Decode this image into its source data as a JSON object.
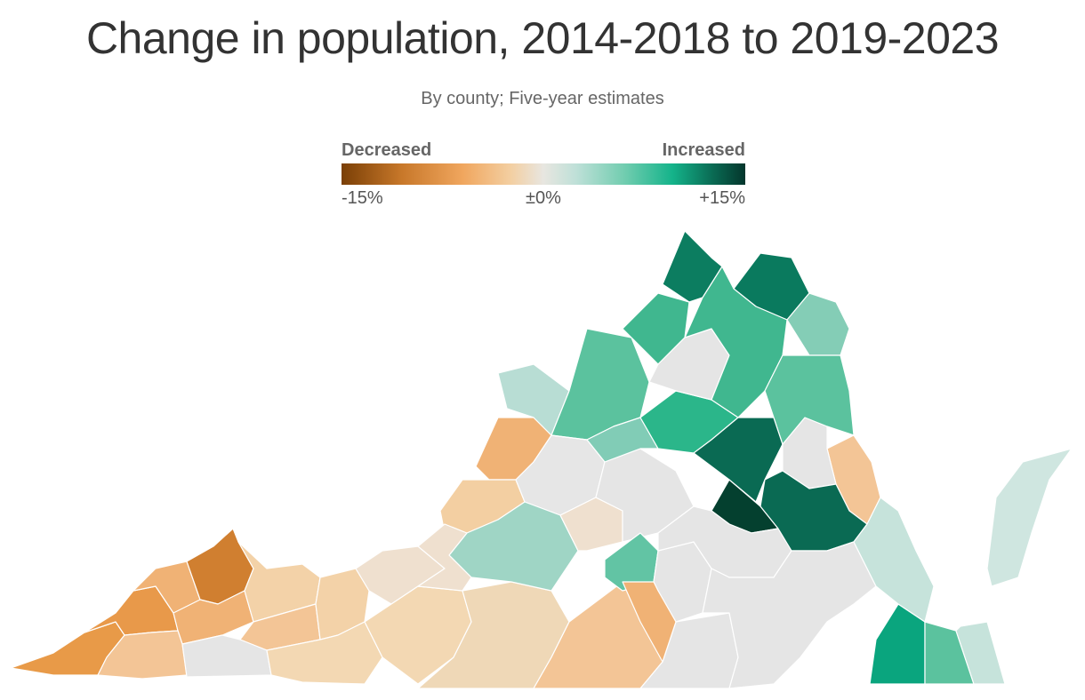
{
  "title": "Change in population, 2014-2018 to 2019-2023",
  "subtitle": "By county; Five-year estimates",
  "legend": {
    "low_label": "Decreased",
    "high_label": "Increased",
    "ticks": [
      "-15%",
      "±0%",
      "+15%"
    ],
    "color_scale": [
      "#7a3f06",
      "#c8782a",
      "#f0a65e",
      "#f3cfa2",
      "#e8e6e0",
      "#bfe0d8",
      "#72cdb0",
      "#14b38a",
      "#0a6a53",
      "#04362c"
    ]
  },
  "map": {
    "region": "Virginia",
    "counties": [
      {
        "id": "far-sw-1",
        "color": "#e89a48"
      },
      {
        "id": "far-sw-2",
        "color": "#e8994a"
      },
      {
        "id": "far-sw-3",
        "color": "#f0b275"
      },
      {
        "id": "buchanan",
        "color": "#d07f30"
      },
      {
        "id": "sw-4",
        "color": "#f0b275"
      },
      {
        "id": "sw-5",
        "color": "#f3c596"
      },
      {
        "id": "sw-6",
        "color": "#f3d2a8"
      },
      {
        "id": "sw-7",
        "color": "#f3c596"
      },
      {
        "id": "sw-8",
        "color": "#f3d2a8"
      },
      {
        "id": "sw-9",
        "color": "#e5e5e5"
      },
      {
        "id": "sw-10",
        "color": "#efe0cf"
      },
      {
        "id": "south-1",
        "color": "#f3d8b3"
      },
      {
        "id": "south-2",
        "color": "#f3d8b3"
      },
      {
        "id": "south-3",
        "color": "#efd8b7"
      },
      {
        "id": "south-4",
        "color": "#f3c596"
      },
      {
        "id": "south-5",
        "color": "#e5e5e5"
      },
      {
        "id": "west-1",
        "color": "#f0b275"
      },
      {
        "id": "west-2",
        "color": "#f3cfa2"
      },
      {
        "id": "west-3",
        "color": "#b8ddd4"
      },
      {
        "id": "west-4",
        "color": "#e6e6e6"
      },
      {
        "id": "central-1",
        "color": "#9fd5c5"
      },
      {
        "id": "central-2",
        "color": "#efe0cf"
      },
      {
        "id": "central-3",
        "color": "#e5e5e5"
      },
      {
        "id": "central-4",
        "color": "#62c4a4"
      },
      {
        "id": "central-5",
        "color": "#e5e5e5"
      },
      {
        "id": "central-6",
        "color": "#f0b275"
      },
      {
        "id": "north-1",
        "color": "#5bc29e"
      },
      {
        "id": "north-2",
        "color": "#81ccb6"
      },
      {
        "id": "north-3",
        "color": "#40b78f"
      },
      {
        "id": "north-4",
        "color": "#2bb68a"
      },
      {
        "id": "north-5",
        "color": "#0c7d60"
      },
      {
        "id": "north-6",
        "color": "#0a7a5e"
      },
      {
        "id": "north-7",
        "color": "#e5e5e5"
      },
      {
        "id": "north-8",
        "color": "#84cdb6"
      },
      {
        "id": "richmond",
        "color": "#04402f"
      },
      {
        "id": "east-1",
        "color": "#0a6a53"
      },
      {
        "id": "east-2",
        "color": "#f3c596"
      },
      {
        "id": "east-3",
        "color": "#e5e5e5"
      },
      {
        "id": "tidewater-1",
        "color": "#0aa57e"
      },
      {
        "id": "tidewater-2",
        "color": "#5bc29e"
      },
      {
        "id": "tidewater-3",
        "color": "#c6e3db"
      },
      {
        "id": "eastern-shore",
        "color": "#cfe6e0"
      }
    ]
  }
}
